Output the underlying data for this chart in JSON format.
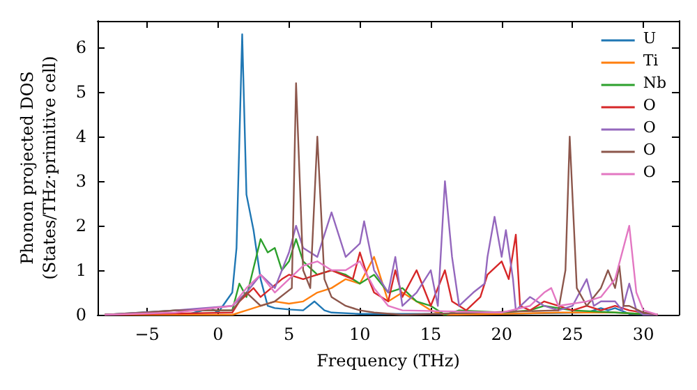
{
  "chart_data": {
    "type": "line",
    "xlabel": "Frequency (THz)",
    "ylabel": "Phonon projected DOS\n(States/THz·primitive cell)",
    "xlim": [
      -8.5,
      32.5
    ],
    "ylim": [
      0,
      6.6
    ],
    "xticks": [
      -5,
      0,
      5,
      10,
      15,
      20,
      25,
      30
    ],
    "yticks": [
      0,
      1,
      2,
      3,
      4,
      5,
      6
    ],
    "grid": false,
    "legend": "top right",
    "marker": "none",
    "line_style": "solid",
    "series": [
      {
        "name": "U",
        "color": "#1f77b4",
        "x": [
          -8,
          -2,
          -0.5,
          0,
          1,
          1.3,
          1.7,
          2,
          2.5,
          3,
          3.5,
          4,
          5,
          6,
          6.8,
          7.5,
          8,
          10,
          20,
          26,
          27,
          27.5,
          28,
          29,
          31
        ],
        "values": [
          0,
          0.02,
          0.15,
          0.05,
          0.5,
          1.5,
          6.3,
          2.7,
          1.9,
          0.8,
          0.2,
          0.15,
          0.12,
          0.1,
          0.3,
          0.1,
          0.05,
          0.02,
          0.02,
          0.05,
          0.15,
          0.1,
          0.15,
          0.02,
          0
        ]
      },
      {
        "name": "Ti",
        "color": "#ff7f0e",
        "x": [
          -8,
          1,
          2,
          3,
          4,
          5,
          6,
          7,
          8,
          9,
          10,
          11,
          11.5,
          12,
          13,
          14,
          15,
          16,
          20,
          24,
          28,
          31
        ],
        "values": [
          0,
          0,
          0.1,
          0.2,
          0.3,
          0.25,
          0.3,
          0.5,
          0.6,
          0.8,
          0.7,
          1.3,
          0.8,
          0.3,
          0.5,
          0.3,
          0.1,
          0,
          0.02,
          0.05,
          0.05,
          0
        ]
      },
      {
        "name": "Nb",
        "color": "#2ca02c",
        "x": [
          -8,
          -3,
          1,
          1.5,
          2,
          3,
          3.5,
          4,
          4.5,
          5,
          5.5,
          6,
          7,
          8,
          9,
          10,
          11,
          12,
          13,
          14,
          15,
          16,
          17,
          20,
          22,
          23,
          25,
          28,
          31
        ],
        "values": [
          0,
          0.1,
          0.1,
          0.7,
          0.4,
          1.7,
          1.4,
          1.5,
          1,
          1.2,
          1.7,
          1.2,
          0.9,
          1,
          0.9,
          0.7,
          0.9,
          0.5,
          0.6,
          0.3,
          0.2,
          0,
          0.1,
          0.05,
          0.1,
          0.2,
          0.1,
          0.05,
          0
        ]
      },
      {
        "name": "O",
        "color": "#d62728",
        "x": [
          -8,
          1,
          1.5,
          2.5,
          3,
          4.5,
          5,
          6,
          7,
          8,
          9.5,
          10,
          10.5,
          11,
          12,
          12.5,
          13,
          14,
          15,
          16,
          16.5,
          17.5,
          18.5,
          19,
          20,
          20.5,
          21,
          21.3,
          22,
          23,
          24,
          25,
          26,
          27,
          28,
          29,
          31
        ],
        "values": [
          0,
          0.05,
          0.3,
          0.6,
          0.4,
          0.8,
          0.9,
          0.8,
          0.9,
          1,
          0.8,
          1.4,
          0.9,
          0.5,
          0.3,
          1,
          0.4,
          1,
          0.2,
          1,
          0.3,
          0.1,
          0.4,
          0.9,
          1.2,
          0.8,
          1.8,
          0.2,
          0.1,
          0.3,
          0.2,
          0.1,
          0.2,
          0.1,
          0.2,
          0.1,
          0
        ]
      },
      {
        "name": "O",
        "color": "#9467bd",
        "x": [
          -8,
          -3,
          1,
          2,
          3,
          4,
          5,
          5.5,
          6,
          7,
          8,
          9,
          10,
          10.3,
          11,
          12,
          12.5,
          13,
          14,
          15,
          15.5,
          16,
          16.5,
          17,
          18,
          18.8,
          19,
          19.5,
          20,
          20.3,
          20.8,
          21,
          22,
          23,
          24,
          25,
          26,
          26.5,
          27,
          28,
          28.5,
          29,
          29.5,
          30,
          31
        ],
        "values": [
          0,
          0.1,
          0.2,
          0.5,
          0.9,
          0.6,
          1.4,
          2,
          1.5,
          1.3,
          2.3,
          1.3,
          1.6,
          2.1,
          1,
          0.5,
          1.3,
          0.2,
          0.5,
          1,
          0.2,
          3,
          1.3,
          0.2,
          0.5,
          0.7,
          1.3,
          2.2,
          1.3,
          1.9,
          0.8,
          0.1,
          0.4,
          0.2,
          0.1,
          0.2,
          0.8,
          0.2,
          0.3,
          0.3,
          0.1,
          0.7,
          0.1,
          0,
          0
        ]
      },
      {
        "name": "O",
        "color": "#8c564b",
        "x": [
          -8,
          -5,
          -3,
          1,
          2,
          3,
          4,
          5.2,
          5.5,
          6,
          6.5,
          7,
          7.5,
          8,
          9,
          10,
          11,
          13,
          24,
          24.5,
          24.8,
          25.3,
          26,
          27,
          27.5,
          28,
          28.3,
          28.6,
          29,
          30,
          31
        ],
        "values": [
          0,
          0.05,
          0.1,
          0.1,
          0.5,
          0.2,
          0.3,
          0.6,
          5.2,
          1,
          0.6,
          4,
          0.8,
          0.4,
          0.2,
          0.1,
          0.05,
          0,
          0.1,
          1,
          4,
          0.6,
          0.2,
          0.6,
          1,
          0.6,
          1.1,
          0.2,
          0.2,
          0.05,
          0
        ]
      },
      {
        "name": "O",
        "color": "#e377c2",
        "x": [
          -8,
          -3,
          1,
          2,
          3,
          4,
          5,
          6,
          7,
          8,
          9,
          10,
          11,
          12,
          13,
          20,
          22,
          23,
          23.5,
          24,
          26,
          27,
          28,
          29,
          29.5,
          30,
          31
        ],
        "values": [
          0,
          0.05,
          0.2,
          0.6,
          0.9,
          0.5,
          0.8,
          1.1,
          1.2,
          1,
          1,
          1.2,
          0.6,
          0.2,
          0.1,
          0.05,
          0.2,
          0.5,
          0.6,
          0.2,
          0.3,
          0.4,
          0.8,
          2,
          0.5,
          0.1,
          0
        ]
      }
    ]
  }
}
